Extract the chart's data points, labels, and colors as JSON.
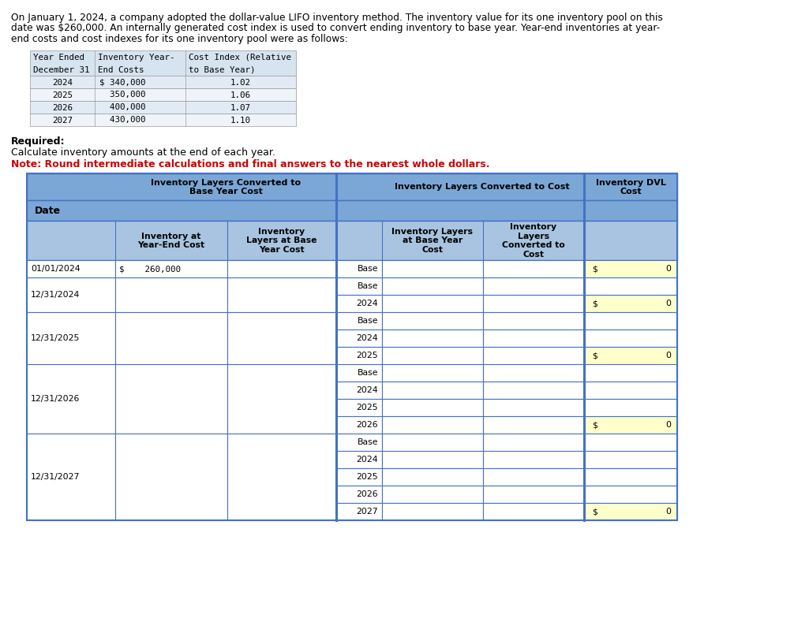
{
  "intro_line1": "On January 1, 2024, a company adopted the dollar-value LIFO inventory method. The inventory value for its one inventory pool on this",
  "intro_line2": "date was $260,000. An internally generated cost index is used to convert ending inventory to base year. Year-end inventories at year-",
  "intro_line3": "end costs and cost indexes for its one inventory pool were as follows:",
  "input_rows": [
    [
      "2024",
      "$ 340,000",
      "1.02"
    ],
    [
      "2025",
      "  350,000",
      "1.06"
    ],
    [
      "2026",
      "  400,000",
      "1.07"
    ],
    [
      "2027",
      "  430,000",
      "1.10"
    ]
  ],
  "required_label": "Required:",
  "required_text": "Calculate inventory amounts at the end of each year.",
  "note_text": "Note: Round intermediate calculations and final answers to the nearest whole dollars.",
  "header_bg": "#7BA7D6",
  "subheader_bg": "#A8C4E0",
  "white_bg": "#FFFFFF",
  "yellow_bg": "#FFFFCC",
  "input_table_bg": "#D6E4F0",
  "border_color": "#4472C4",
  "red_color": "#CC0000",
  "groups": [
    {
      "date": "01/01/2024",
      "inv_ye": "$    260,000",
      "layers": [
        "Base"
      ],
      "dvl_on_last": true
    },
    {
      "date": "12/31/2024",
      "inv_ye": "",
      "layers": [
        "Base",
        "2024"
      ],
      "dvl_on_last": true
    },
    {
      "date": "12/31/2025",
      "inv_ye": "",
      "layers": [
        "Base",
        "2024",
        "2025"
      ],
      "dvl_on_last": true
    },
    {
      "date": "12/31/2026",
      "inv_ye": "",
      "layers": [
        "Base",
        "2024",
        "2025",
        "2026"
      ],
      "dvl_on_last": true
    },
    {
      "date": "12/31/2027",
      "inv_ye": "",
      "layers": [
        "Base",
        "2024",
        "2025",
        "2026",
        "2027"
      ],
      "dvl_on_last": true
    }
  ]
}
